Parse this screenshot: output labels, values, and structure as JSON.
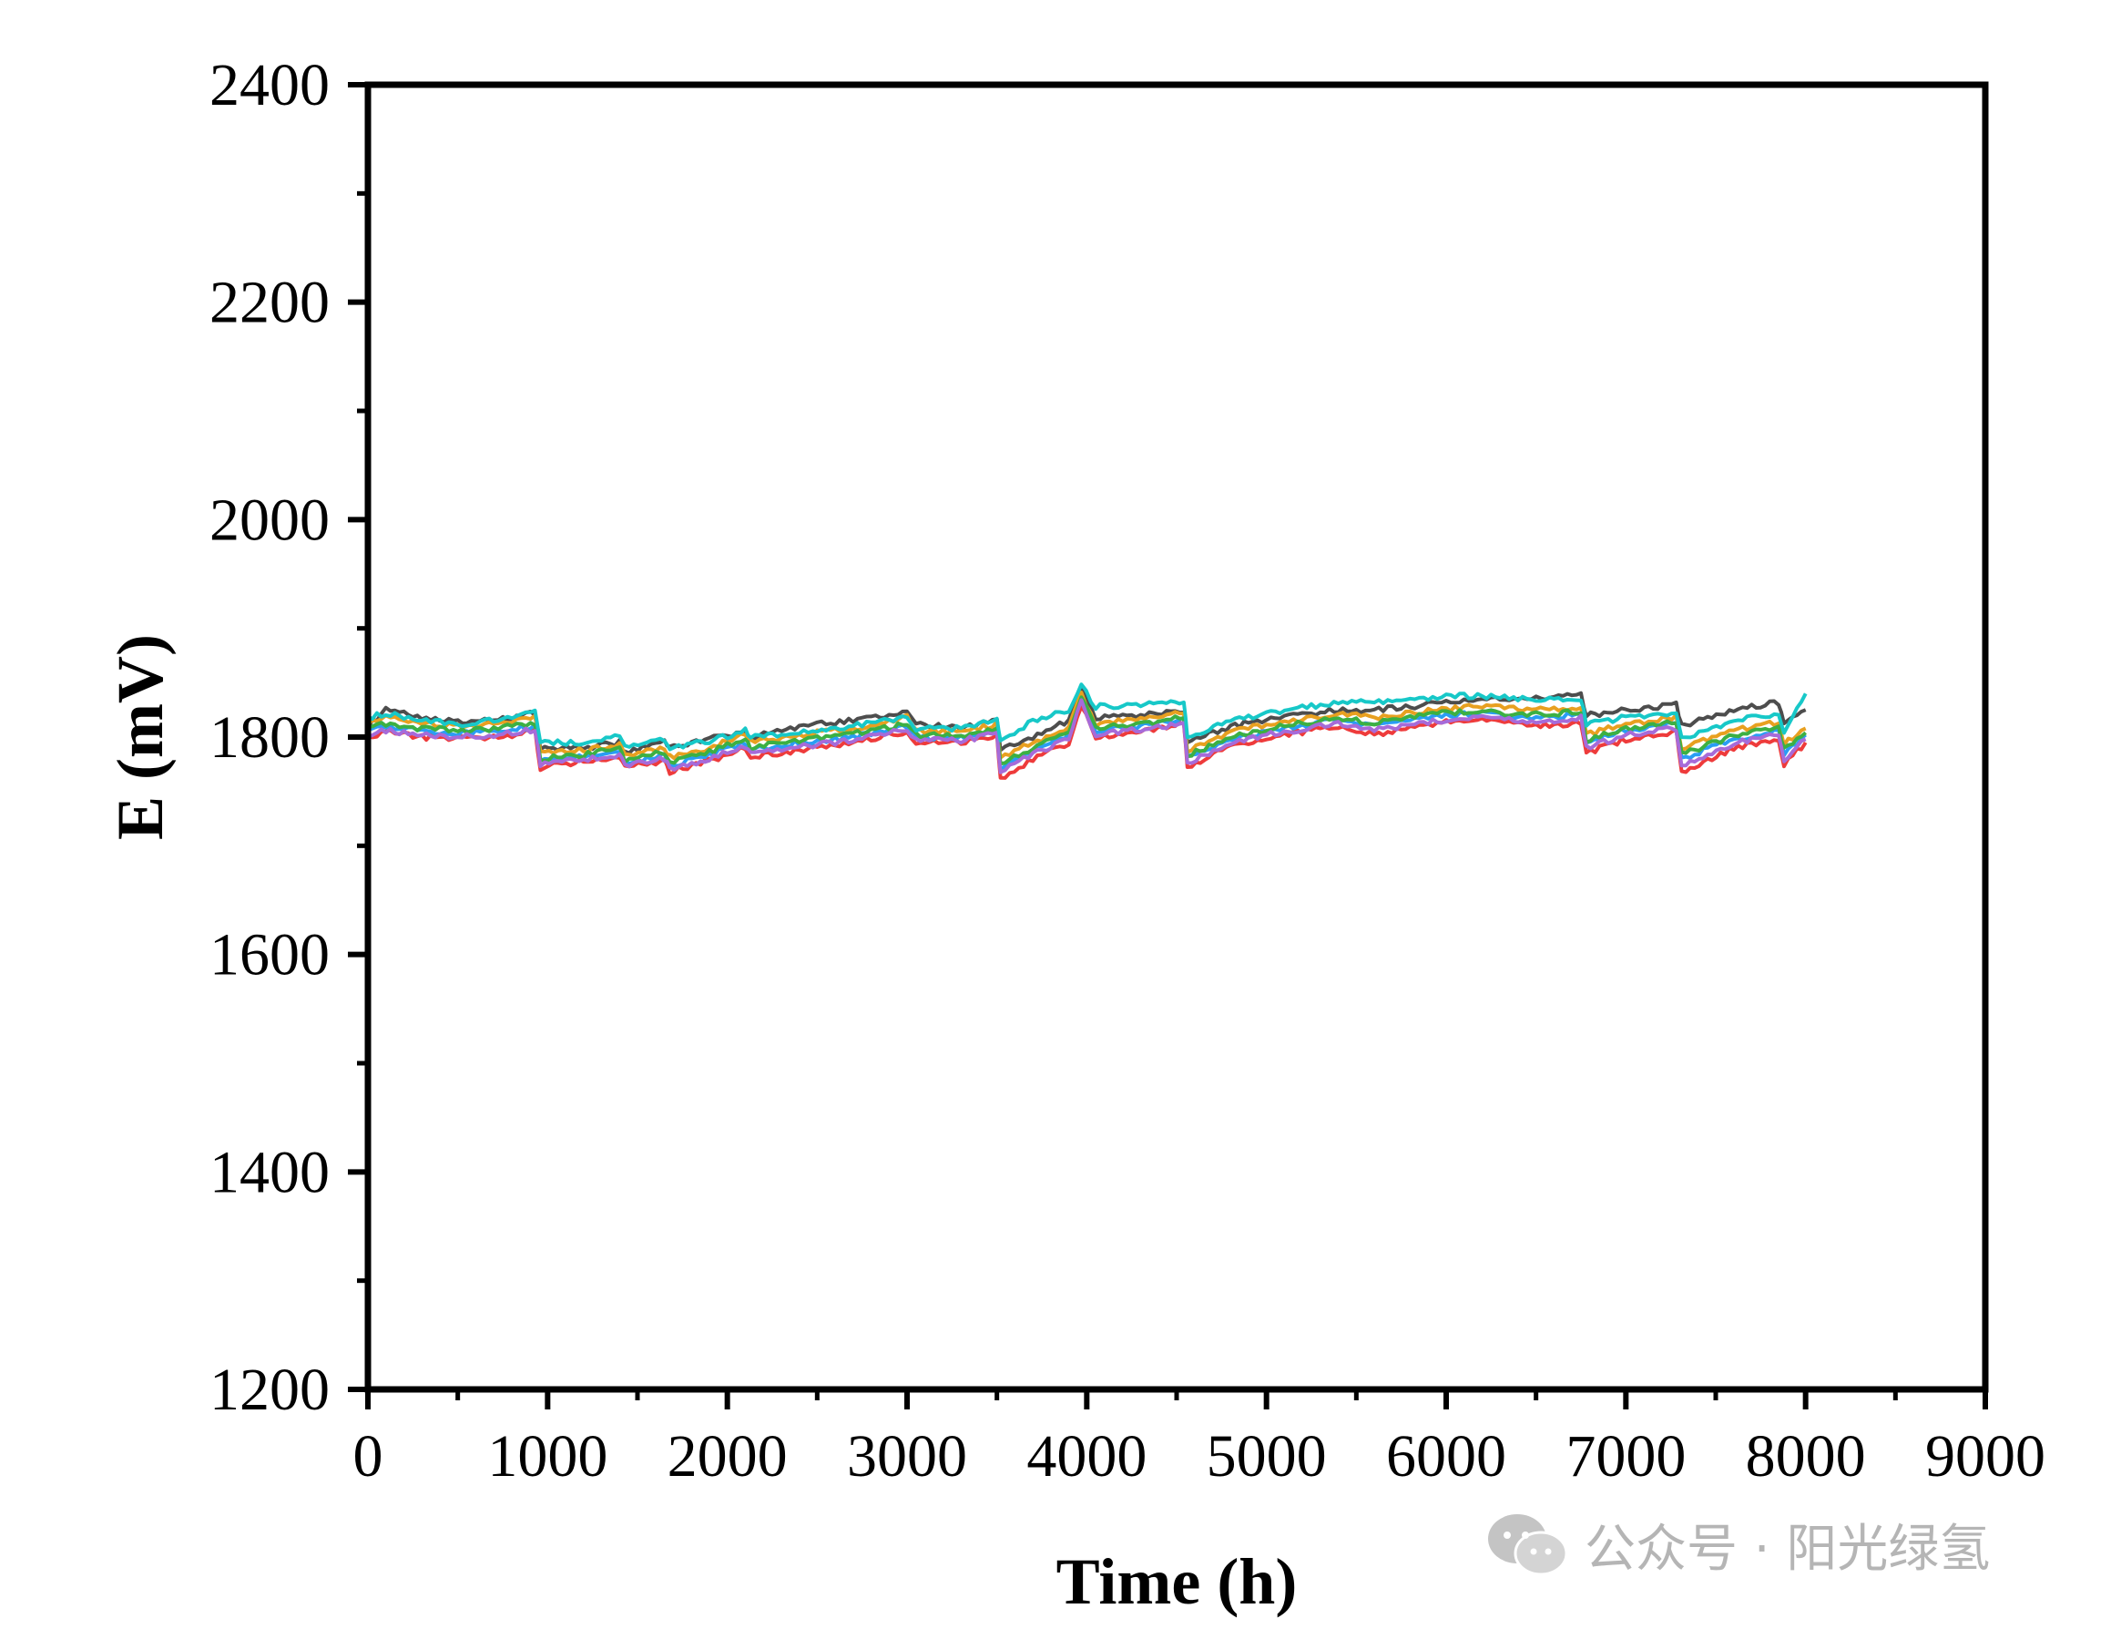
{
  "chart_data": {
    "type": "line",
    "title": "",
    "xlabel": "Time (h)",
    "ylabel": "E (mV)",
    "xlim": [
      0,
      9000
    ],
    "ylim": [
      1200,
      2400
    ],
    "x_ticks": [
      0,
      1000,
      2000,
      3000,
      4000,
      5000,
      6000,
      7000,
      8000,
      9000
    ],
    "y_ticks": [
      1200,
      1400,
      1600,
      1800,
      2000,
      2200,
      2400
    ],
    "x_tick_labels": [
      "0",
      "1000",
      "2000",
      "3000",
      "4000",
      "5000",
      "6000",
      "7000",
      "8000",
      "9000"
    ],
    "y_tick_labels": [
      "1200",
      "1400",
      "1600",
      "1800",
      "2000",
      "2200",
      "2400"
    ],
    "grid": false,
    "legend": "none",
    "x": [
      0,
      100,
      300,
      500,
      700,
      930,
      960,
      1200,
      1400,
      1430,
      1650,
      1680,
      1900,
      2100,
      2130,
      2400,
      2700,
      3000,
      3050,
      3300,
      3500,
      3520,
      3700,
      3900,
      3970,
      4050,
      4300,
      4540,
      4560,
      4800,
      5100,
      5400,
      5600,
      5800,
      6000,
      6200,
      6400,
      6600,
      6750,
      6780,
      7000,
      7280,
      7310,
      7600,
      7850,
      7880,
      8000
    ],
    "series": [
      {
        "color": "#4d4d4d",
        "values": [
          1810,
          1825,
          1818,
          1815,
          1815,
          1822,
          1790,
          1790,
          1795,
          1785,
          1795,
          1790,
          1798,
          1805,
          1800,
          1810,
          1815,
          1822,
          1812,
          1808,
          1815,
          1790,
          1800,
          1815,
          1845,
          1818,
          1820,
          1825,
          1795,
          1810,
          1818,
          1825,
          1825,
          1828,
          1832,
          1836,
          1834,
          1836,
          1840,
          1820,
          1825,
          1830,
          1810,
          1825,
          1832,
          1815,
          1825
        ]
      },
      {
        "color": "#ee3b3b",
        "values": [
          1800,
          1805,
          1800,
          1798,
          1800,
          1805,
          1772,
          1778,
          1782,
          1772,
          1778,
          1768,
          1778,
          1790,
          1782,
          1788,
          1795,
          1805,
          1795,
          1795,
          1800,
          1762,
          1780,
          1795,
          1830,
          1800,
          1805,
          1812,
          1772,
          1792,
          1802,
          1810,
          1802,
          1808,
          1814,
          1816,
          1812,
          1810,
          1814,
          1785,
          1798,
          1805,
          1768,
          1790,
          1798,
          1775,
          1795
        ]
      },
      {
        "color": "#2a9df4",
        "values": [
          1805,
          1810,
          1806,
          1803,
          1805,
          1810,
          1778,
          1782,
          1787,
          1776,
          1783,
          1774,
          1783,
          1795,
          1788,
          1795,
          1800,
          1810,
          1800,
          1799,
          1806,
          1772,
          1788,
          1802,
          1836,
          1806,
          1810,
          1816,
          1780,
          1798,
          1808,
          1816,
          1810,
          1815,
          1820,
          1822,
          1818,
          1818,
          1822,
          1795,
          1806,
          1812,
          1780,
          1798,
          1806,
          1785,
          1802
        ]
      },
      {
        "color": "#e8a020",
        "values": [
          1813,
          1818,
          1813,
          1810,
          1812,
          1818,
          1785,
          1788,
          1793,
          1783,
          1790,
          1782,
          1790,
          1802,
          1795,
          1802,
          1808,
          1818,
          1806,
          1805,
          1812,
          1780,
          1795,
          1808,
          1840,
          1812,
          1816,
          1822,
          1788,
          1805,
          1814,
          1822,
          1818,
          1822,
          1826,
          1828,
          1826,
          1826,
          1828,
          1802,
          1812,
          1818,
          1790,
          1806,
          1814,
          1794,
          1808
        ]
      },
      {
        "color": "#3cb043",
        "values": [
          1808,
          1812,
          1808,
          1806,
          1808,
          1813,
          1780,
          1784,
          1789,
          1779,
          1786,
          1777,
          1786,
          1798,
          1790,
          1797,
          1803,
          1812,
          1802,
          1801,
          1808,
          1775,
          1790,
          1804,
          1838,
          1808,
          1812,
          1818,
          1783,
          1800,
          1810,
          1818,
          1813,
          1818,
          1822,
          1824,
          1821,
          1821,
          1824,
          1797,
          1808,
          1814,
          1784,
          1801,
          1809,
          1788,
          1804
        ]
      },
      {
        "color": "#a66bd9",
        "values": [
          1802,
          1806,
          1802,
          1800,
          1802,
          1807,
          1774,
          1779,
          1784,
          1774,
          1780,
          1771,
          1780,
          1792,
          1785,
          1791,
          1797,
          1807,
          1797,
          1797,
          1803,
          1768,
          1784,
          1798,
          1832,
          1802,
          1807,
          1813,
          1776,
          1795,
          1805,
          1812,
          1806,
          1811,
          1816,
          1818,
          1815,
          1814,
          1818,
          1790,
          1802,
          1808,
          1774,
          1794,
          1802,
          1780,
          1798
        ]
      },
      {
        "color": "#17c8c8",
        "values": [
          1818,
          1822,
          1816,
          1812,
          1815,
          1822,
          1795,
          1795,
          1800,
          1792,
          1797,
          1790,
          1796,
          1806,
          1800,
          1805,
          1810,
          1818,
          1808,
          1808,
          1818,
          1795,
          1815,
          1825,
          1848,
          1828,
          1830,
          1832,
          1800,
          1815,
          1825,
          1832,
          1832,
          1835,
          1838,
          1838,
          1836,
          1835,
          1835,
          1812,
          1818,
          1822,
          1798,
          1815,
          1822,
          1805,
          1840
        ]
      }
    ]
  },
  "watermark": {
    "text": "公众号 · 阳光绿氢",
    "icon": "wechat-icon"
  }
}
